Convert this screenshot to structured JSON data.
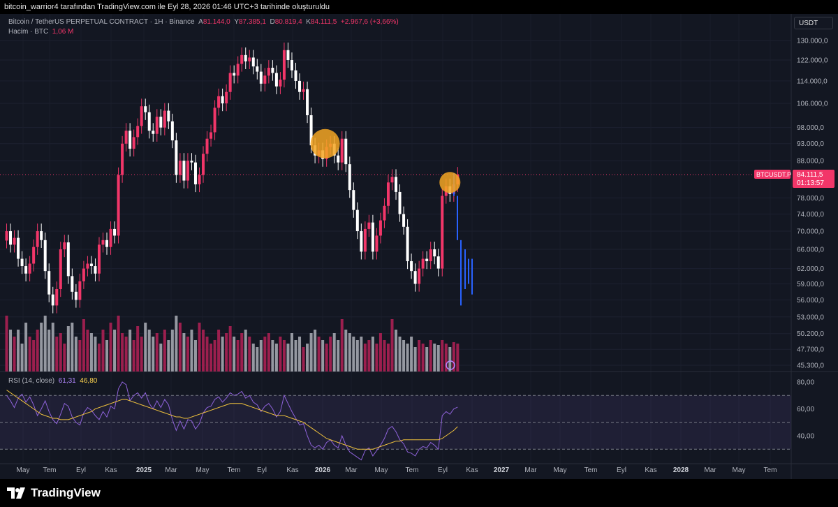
{
  "header": {
    "attribution": "bitcoin_warrior4 tarafından TradingView.com ile Eyl 28, 2026 01:46 UTC+3 tarihinde oluşturuldu"
  },
  "legend": {
    "title": "Bitcoin / TetherUS PERPETUAL CONTRACT · 1H · Binance",
    "open_label": "A",
    "open": "81.144,0",
    "high_label": "Y",
    "high": "87.385,1",
    "low_label": "D",
    "low": "80.819,4",
    "close_label": "K",
    "close": "84.111,5",
    "change": "+2.967,6 (+3,66%)",
    "volume_label": "Hacim · BTC",
    "volume": "1,06 M",
    "rsi_label": "RSI (14, close)",
    "rsi_value": "61,31",
    "rsi_ma": "46,80"
  },
  "symbol_button": "USDT",
  "price_badge": {
    "symbol": "BTCUSDT.P",
    "price": "84.111,5",
    "countdown": "01:13:57"
  },
  "brand": "TradingView",
  "colors": {
    "up": "#f23669",
    "down": "#ffffff",
    "forecast": "#2962ff",
    "vol_up": "#9c1f4e",
    "vol_down": "#9598a1",
    "rsi": "#8e62d9",
    "rsi_ma": "#f0c23c",
    "highlight": "#f5a623"
  },
  "chart_data": {
    "type": "candlestick",
    "y_ticks": [
      "130.000,0",
      "122.000,0",
      "114.000,0",
      "106.000,0",
      "98.000,0",
      "93.000,0",
      "88.000,0",
      "78.000,0",
      "74.000,0",
      "70.000,0",
      "66.000,0",
      "62.000,0",
      "59.000,0",
      "56.000,0",
      "53.000,0",
      "50.200,0",
      "47.700,0",
      "45.300,0"
    ],
    "y_tick_values": [
      130000,
      122000,
      114000,
      106000,
      98000,
      93000,
      88000,
      78000,
      74000,
      70000,
      66000,
      62000,
      59000,
      56000,
      53000,
      50200,
      47700,
      45300
    ],
    "y_scale": "log",
    "x_ticks": [
      "May",
      "Tem",
      "Eyl",
      "Kas",
      "2025",
      "Mar",
      "May",
      "Tem",
      "Eyl",
      "Kas",
      "2026",
      "Mar",
      "May",
      "Tem",
      "Eyl",
      "Kas",
      "2027",
      "Mar",
      "May",
      "Tem",
      "Eyl",
      "Kas",
      "2028",
      "Mar",
      "May",
      "Tem"
    ],
    "rsi_ticks": [
      "80,00",
      "60,00",
      "40,00"
    ],
    "rsi_tick_values": [
      80,
      60,
      40
    ],
    "rsi_bands": [
      70,
      50,
      30
    ],
    "closes": [
      70000,
      67000,
      68500,
      64000,
      62500,
      61000,
      63000,
      66500,
      70000,
      68000,
      61500,
      57000,
      55000,
      58000,
      66000,
      67500,
      60500,
      57500,
      56000,
      59500,
      62000,
      63000,
      62500,
      61000,
      67000,
      68000,
      66500,
      70500,
      69000,
      84000,
      93000,
      97000,
      91500,
      95000,
      98500,
      105000,
      103000,
      97000,
      96000,
      101500,
      98000,
      103500,
      100000,
      94000,
      84000,
      88000,
      82500,
      88000,
      87500,
      81500,
      84000,
      90000,
      94500,
      96500,
      104500,
      108500,
      106000,
      110000,
      117000,
      116000,
      120500,
      124000,
      121500,
      123000,
      119500,
      117500,
      113000,
      116000,
      119000,
      117000,
      112000,
      114500,
      126000,
      122000,
      118000,
      114000,
      110000,
      111000,
      102000,
      92500,
      89500,
      91000,
      88500,
      92000,
      93000,
      89500,
      87500,
      94500,
      87000,
      80000,
      75000,
      70000,
      65500,
      70500,
      72000,
      65500,
      69000,
      72500,
      76000,
      82000,
      83500,
      79500,
      74000,
      71000,
      63500,
      61500,
      59000,
      62000,
      64000,
      63500,
      66000,
      64500,
      62000,
      78500,
      81000,
      79000,
      81500,
      84111.5
    ],
    "forecast_lines": [
      [
        84500,
        78500
      ],
      [
        78500,
        68000
      ],
      [
        68000,
        55000
      ],
      [
        66000,
        58000
      ],
      [
        64000,
        59000
      ],
      [
        64000,
        57000
      ]
    ],
    "volume_rel": [
      0.8,
      0.6,
      0.5,
      0.6,
      0.4,
      0.7,
      0.5,
      0.45,
      0.6,
      0.7,
      0.8,
      0.6,
      0.7,
      0.5,
      0.55,
      0.4,
      0.65,
      0.7,
      0.5,
      0.45,
      0.75,
      0.6,
      0.55,
      0.5,
      0.4,
      0.6,
      0.45,
      0.7,
      0.6,
      0.8,
      0.55,
      0.5,
      0.6,
      0.45,
      0.65,
      0.5,
      0.7,
      0.6,
      0.5,
      0.55,
      0.4,
      0.6,
      0.45,
      0.6,
      0.8,
      0.7,
      0.55,
      0.5,
      0.6,
      0.45,
      0.7,
      0.6,
      0.5,
      0.4,
      0.45,
      0.6,
      0.5,
      0.55,
      0.65,
      0.5,
      0.45,
      0.55,
      0.6,
      0.5,
      0.4,
      0.35,
      0.45,
      0.5,
      0.55,
      0.45,
      0.4,
      0.5,
      0.45,
      0.4,
      0.55,
      0.45,
      0.5,
      0.35,
      0.4,
      0.55,
      0.6,
      0.5,
      0.45,
      0.4,
      0.5,
      0.55,
      0.45,
      0.75,
      0.6,
      0.55,
      0.5,
      0.45,
      0.5,
      0.4,
      0.45,
      0.5,
      0.4,
      0.55,
      0.45,
      0.4,
      0.75,
      0.6,
      0.5,
      0.45,
      0.4,
      0.5,
      0.35,
      0.45,
      0.4,
      0.35,
      0.45,
      0.4,
      0.38,
      0.45,
      0.4,
      0.35,
      0.42,
      0.4
    ],
    "rsi_values": [
      70,
      66,
      61,
      68,
      71,
      65,
      69,
      63,
      55,
      60,
      66,
      58,
      52,
      49,
      56,
      64,
      62,
      54,
      50,
      48,
      57,
      61,
      59,
      55,
      52,
      58,
      54,
      62,
      60,
      75,
      80,
      78,
      66,
      70,
      72,
      68,
      72,
      64,
      60,
      66,
      61,
      67,
      63,
      52,
      44,
      51,
      45,
      52,
      51,
      45,
      49,
      57,
      61,
      62,
      67,
      69,
      65,
      68,
      72,
      70,
      71,
      73,
      68,
      70,
      65,
      63,
      58,
      62,
      64,
      60,
      54,
      58,
      70,
      64,
      58,
      53,
      48,
      49,
      40,
      33,
      31,
      33,
      30,
      35,
      37,
      33,
      31,
      40,
      33,
      28,
      26,
      24,
      22,
      29,
      31,
      25,
      29,
      33,
      38,
      45,
      47,
      43,
      37,
      34,
      28,
      27,
      25,
      30,
      32,
      31,
      35,
      33,
      30,
      55,
      58,
      56,
      60,
      61.31
    ],
    "rsi_ma_values": [
      74,
      72,
      70,
      68,
      66,
      64,
      62,
      60,
      58,
      56,
      55,
      54,
      53,
      53,
      52,
      52,
      52,
      53,
      54,
      55,
      56,
      57,
      58,
      60,
      61,
      62,
      63,
      64,
      65,
      66,
      67,
      67,
      66,
      65,
      64,
      63,
      62,
      61,
      60,
      59,
      58,
      57,
      56,
      55,
      54,
      54,
      53,
      53,
      54,
      55,
      56,
      57,
      58,
      59,
      60,
      61,
      62,
      63,
      64,
      64,
      64,
      64,
      63,
      62,
      61,
      60,
      59,
      58,
      57,
      56,
      55,
      55,
      55,
      54,
      53,
      52,
      51,
      50,
      48,
      46,
      44,
      42,
      40,
      38,
      37,
      36,
      35,
      34,
      33,
      32,
      31,
      30,
      30,
      30,
      30,
      30,
      31,
      32,
      33,
      34,
      35,
      36,
      36,
      37,
      37,
      37,
      37,
      37,
      37,
      37,
      37,
      37,
      37,
      38,
      40,
      42,
      44,
      46.8
    ],
    "highlights": [
      {
        "center_index": 81,
        "price": 93000
      },
      {
        "center_index": 115,
        "price": 82000
      }
    ],
    "last_price": 84111.5
  }
}
